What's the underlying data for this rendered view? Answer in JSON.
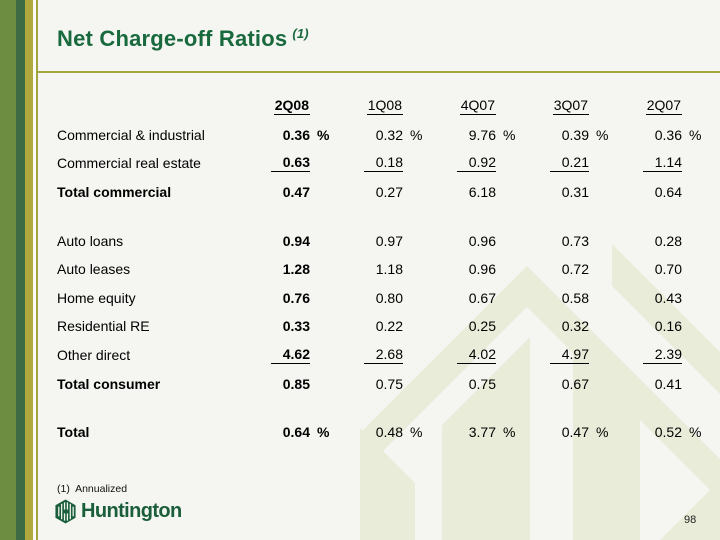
{
  "slide": {
    "title": "Net Charge-off Ratios",
    "title_superscript": "(1)",
    "footnote": "(1)  Annualized",
    "logo_text": "Huntington",
    "page_number": "98"
  },
  "colors": {
    "title_green": "#186a3e",
    "logo_green": "#1b5e3b",
    "stripe_olive": "#6d8e41",
    "stripe_dark_green": "#3e6b44",
    "stripe_gold": "#b2a93e",
    "rule_olive": "#a3a53f",
    "watermark_green": "#e9ecd8",
    "background": "#f5f6f1"
  },
  "table": {
    "percent_sign": "%",
    "columns": [
      "2Q08",
      "1Q08",
      "4Q07",
      "3Q07",
      "2Q07"
    ],
    "rows": [
      {
        "label": "Commercial & industrial",
        "values": [
          "0.36",
          "0.32",
          "9.76",
          "0.39",
          "0.36"
        ],
        "pct": true
      },
      {
        "label": "Commercial real estate",
        "values": [
          "0.63",
          "0.18",
          "0.92",
          "0.21",
          "1.14"
        ],
        "underline": true
      },
      {
        "label": "Total commercial",
        "values": [
          "0.47",
          "0.27",
          "6.18",
          "0.31",
          "0.64"
        ],
        "bold": true
      },
      {
        "spacer": true
      },
      {
        "label": "Auto loans",
        "values": [
          "0.94",
          "0.97",
          "0.96",
          "0.73",
          "0.28"
        ]
      },
      {
        "label": "Auto leases",
        "values": [
          "1.28",
          "1.18",
          "0.96",
          "0.72",
          "0.70"
        ]
      },
      {
        "label": "Home equity",
        "values": [
          "0.76",
          "0.80",
          "0.67",
          "0.58",
          "0.43"
        ]
      },
      {
        "label": "Residential RE",
        "values": [
          "0.33",
          "0.22",
          "0.25",
          "0.32",
          "0.16"
        ]
      },
      {
        "label": "Other direct",
        "values": [
          "4.62",
          "2.68",
          "4.02",
          "4.97",
          "2.39"
        ],
        "underline": true
      },
      {
        "label": "Total consumer",
        "values": [
          "0.85",
          "0.75",
          "0.75",
          "0.67",
          "0.41"
        ],
        "bold": true
      },
      {
        "spacer": true
      },
      {
        "label": "Total",
        "values": [
          "0.64",
          "0.48",
          "3.77",
          "0.47",
          "0.52"
        ],
        "pct": true,
        "bold": true
      }
    ]
  }
}
